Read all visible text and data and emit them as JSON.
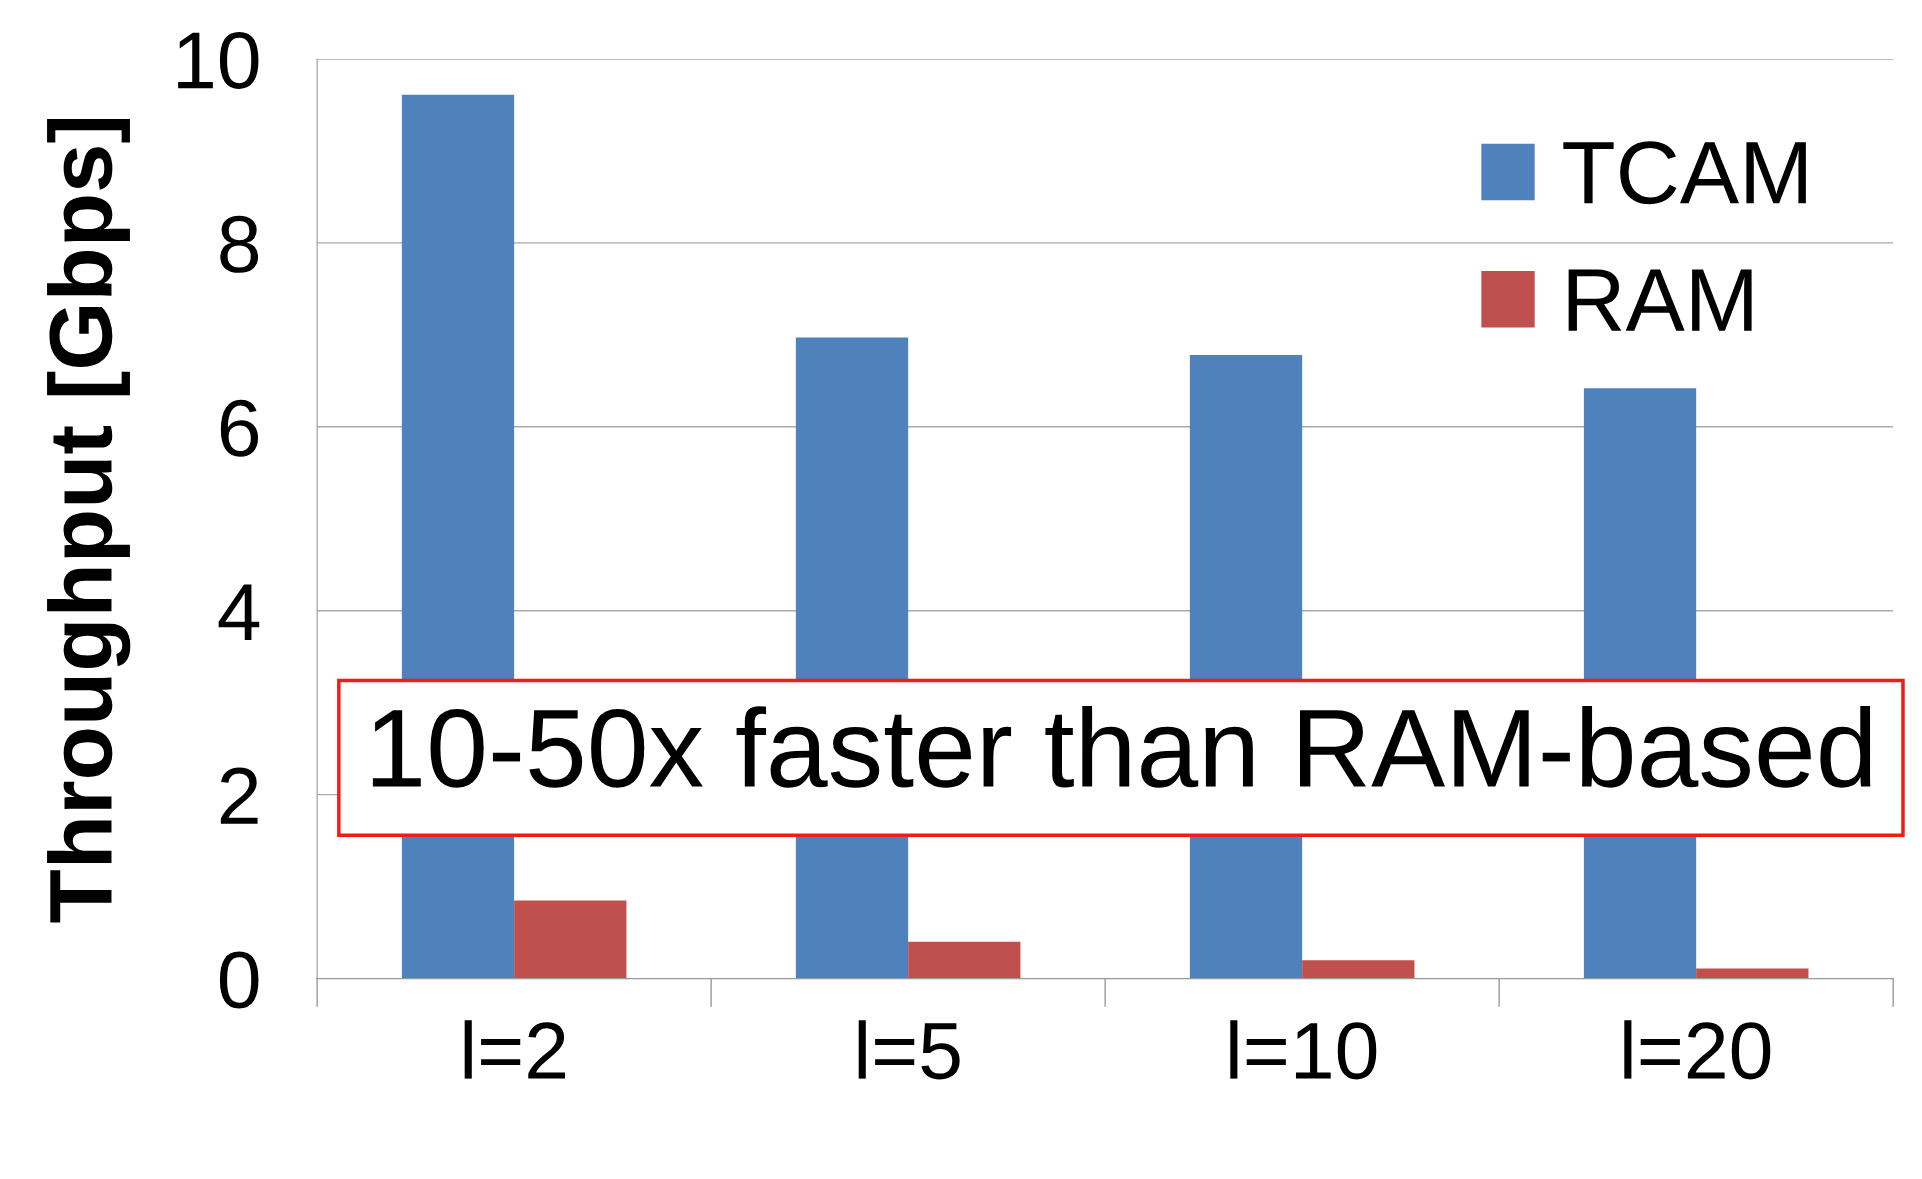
{
  "chart_data": {
    "type": "bar",
    "ylabel": "Throughput [Gbps]",
    "categories": [
      "l=2",
      "l=5",
      "l=10",
      "l=20"
    ],
    "series": [
      {
        "name": "TCAM",
        "color": "#4f81bd",
        "values": [
          9.61,
          6.97,
          6.78,
          6.42
        ]
      },
      {
        "name": "RAM",
        "color": "#c0504d",
        "values": [
          0.85,
          0.4,
          0.2,
          0.11
        ]
      }
    ],
    "ylim": [
      0,
      10
    ],
    "yticks": [
      0,
      2,
      4,
      6,
      8,
      10
    ],
    "grid": "y",
    "legend": "top right",
    "annotations": [
      "10-50x faster than RAM-based"
    ]
  }
}
